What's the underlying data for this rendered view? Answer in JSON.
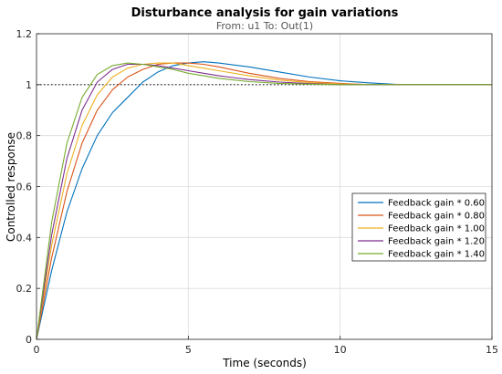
{
  "chart_data": {
    "type": "line",
    "title": "Disturbance analysis for gain variations",
    "subtitle": "From: u1  To: Out(1)",
    "xlabel": "Time (seconds)",
    "ylabel": "Controlled response",
    "xlim": [
      0,
      15
    ],
    "ylim": [
      0,
      1.2
    ],
    "xticks": [
      0,
      5,
      10,
      15
    ],
    "yticks": [
      0,
      0.2,
      0.4,
      0.6,
      0.8,
      1,
      1.2
    ],
    "ytick_labels": [
      "0",
      "0.2",
      "0.4",
      "0.6",
      "0.8",
      "1",
      "1.2"
    ],
    "grid": true,
    "legend_position": "right",
    "reference_line": {
      "y": 1,
      "style": "dotted"
    },
    "series": [
      {
        "name": "Feedback gain * 0.60",
        "color": "#0072BD",
        "x": [
          0,
          0.5,
          1,
          1.5,
          2,
          2.5,
          3,
          3.5,
          4,
          4.5,
          5,
          5.5,
          6,
          7,
          8,
          9,
          10,
          11,
          12,
          13,
          14,
          15
        ],
        "y": [
          0,
          0.27,
          0.5,
          0.67,
          0.8,
          0.89,
          0.95,
          1.01,
          1.05,
          1.075,
          1.085,
          1.09,
          1.085,
          1.07,
          1.05,
          1.03,
          1.015,
          1.007,
          1.0,
          1.0,
          1.0,
          1.0
        ]
      },
      {
        "name": "Feedback gain * 0.80",
        "color": "#D95319",
        "x": [
          0,
          0.5,
          1,
          1.5,
          2,
          2.5,
          3,
          3.5,
          4,
          4.5,
          5,
          5.5,
          6,
          7,
          8,
          9,
          10,
          11,
          12,
          13,
          14,
          15
        ],
        "y": [
          0,
          0.32,
          0.58,
          0.77,
          0.9,
          0.98,
          1.03,
          1.06,
          1.08,
          1.085,
          1.085,
          1.08,
          1.07,
          1.045,
          1.025,
          1.012,
          1.005,
          1.0,
          1.0,
          1.0,
          1.0,
          1.0
        ]
      },
      {
        "name": "Feedback gain * 1.00",
        "color": "#EDB120",
        "x": [
          0,
          0.5,
          1,
          1.5,
          2,
          2.5,
          3,
          3.5,
          4,
          4.5,
          5,
          5.5,
          6,
          7,
          8,
          9,
          10,
          11,
          12,
          13,
          14,
          15
        ],
        "y": [
          0,
          0.37,
          0.65,
          0.84,
          0.96,
          1.03,
          1.065,
          1.08,
          1.085,
          1.085,
          1.075,
          1.065,
          1.055,
          1.035,
          1.018,
          1.008,
          1.003,
          1.0,
          1.0,
          1.0,
          1.0,
          1.0
        ]
      },
      {
        "name": "Feedback gain * 1.20",
        "color": "#7E2F8E",
        "x": [
          0,
          0.5,
          1,
          1.5,
          2,
          2.5,
          3,
          3.5,
          4,
          4.5,
          5,
          5.5,
          6,
          7,
          8,
          9,
          10,
          11,
          12,
          13,
          14,
          15
        ],
        "y": [
          0,
          0.41,
          0.71,
          0.9,
          1.01,
          1.06,
          1.08,
          1.08,
          1.075,
          1.065,
          1.055,
          1.045,
          1.035,
          1.02,
          1.01,
          1.004,
          1.0,
          1.0,
          1.0,
          1.0,
          1.0,
          1.0
        ]
      },
      {
        "name": "Feedback gain * 1.40",
        "color": "#77AC30",
        "x": [
          0,
          0.5,
          1,
          1.5,
          2,
          2.5,
          3,
          3.5,
          4,
          4.5,
          5,
          5.5,
          6,
          7,
          8,
          9,
          10,
          11,
          12,
          13,
          14,
          15
        ],
        "y": [
          0,
          0.46,
          0.77,
          0.95,
          1.04,
          1.075,
          1.085,
          1.08,
          1.07,
          1.06,
          1.045,
          1.035,
          1.025,
          1.012,
          1.005,
          1.002,
          1.0,
          1.0,
          1.0,
          1.0,
          1.0,
          1.0
        ]
      }
    ]
  }
}
